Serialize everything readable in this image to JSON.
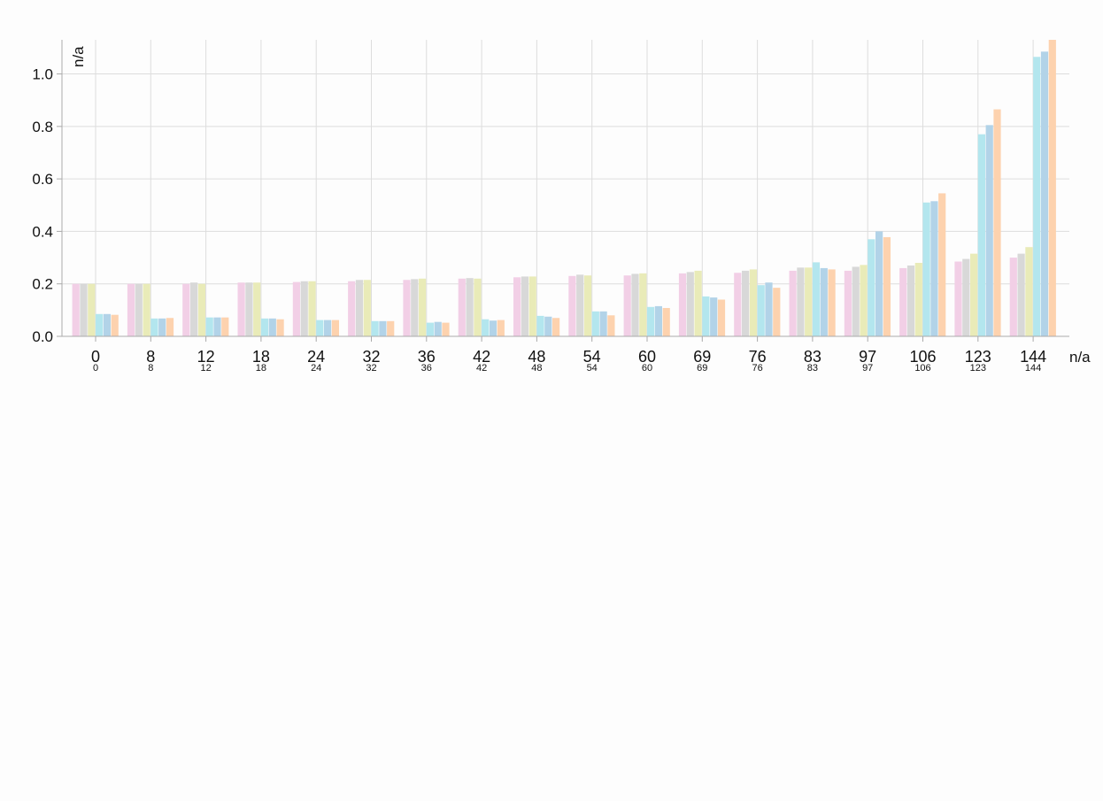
{
  "chart_data": {
    "type": "bar",
    "xlabel": "n/a",
    "ylabel": "n/a",
    "ylim": [
      0,
      1.13
    ],
    "yticks": [
      "0.0",
      "0.2",
      "0.4",
      "0.6",
      "0.8",
      "1.0"
    ],
    "grid": true,
    "categories": [
      "0",
      "8",
      "12",
      "18",
      "24",
      "32",
      "36",
      "42",
      "48",
      "54",
      "60",
      "69",
      "76",
      "83",
      "97",
      "106",
      "123",
      "144"
    ],
    "series": [
      {
        "color": "#f2cfe6",
        "values": [
          0.2,
          0.2,
          0.2,
          0.205,
          0.207,
          0.21,
          0.215,
          0.22,
          0.225,
          0.23,
          0.232,
          0.24,
          0.242,
          0.25,
          0.25,
          0.26,
          0.285,
          0.3
        ]
      },
      {
        "color": "#d8d8d8",
        "values": [
          0.2,
          0.2,
          0.205,
          0.205,
          0.21,
          0.215,
          0.218,
          0.222,
          0.228,
          0.235,
          0.238,
          0.245,
          0.25,
          0.262,
          0.265,
          0.27,
          0.295,
          0.315
        ]
      },
      {
        "color": "#e9ebb8",
        "values": [
          0.2,
          0.2,
          0.2,
          0.205,
          0.21,
          0.215,
          0.22,
          0.22,
          0.228,
          0.232,
          0.24,
          0.25,
          0.255,
          0.262,
          0.272,
          0.28,
          0.315,
          0.34
        ]
      },
      {
        "color": "#b3e6ee",
        "values": [
          0.085,
          0.068,
          0.072,
          0.068,
          0.062,
          0.058,
          0.052,
          0.065,
          0.078,
          0.095,
          0.112,
          0.152,
          0.195,
          0.282,
          0.37,
          0.51,
          0.77,
          1.065
        ]
      },
      {
        "color": "#b2d3e8",
        "values": [
          0.085,
          0.068,
          0.072,
          0.068,
          0.062,
          0.058,
          0.055,
          0.06,
          0.075,
          0.095,
          0.115,
          0.148,
          0.205,
          0.26,
          0.4,
          0.515,
          0.805,
          1.085
        ]
      },
      {
        "color": "#fdd2ae",
        "values": [
          0.082,
          0.07,
          0.072,
          0.065,
          0.062,
          0.058,
          0.052,
          0.062,
          0.07,
          0.08,
          0.108,
          0.14,
          0.185,
          0.255,
          0.378,
          0.545,
          0.865,
          1.13
        ]
      }
    ]
  }
}
